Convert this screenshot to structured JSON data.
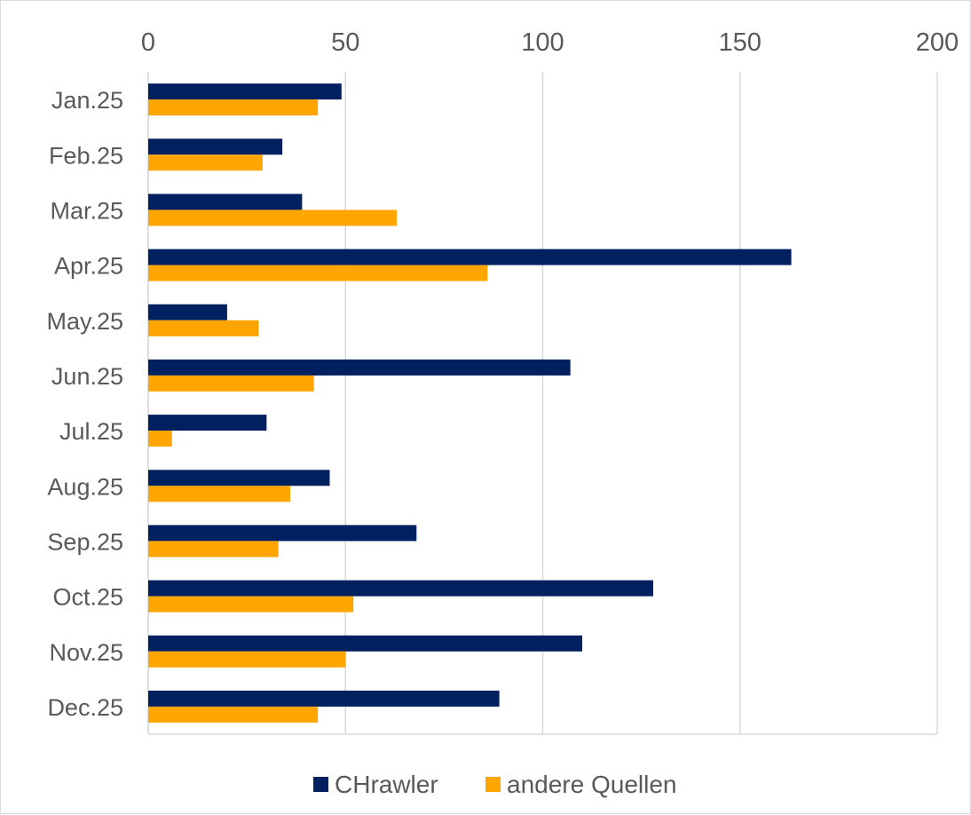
{
  "chart_data": {
    "type": "bar",
    "orientation": "horizontal",
    "categories": [
      "Jan.25",
      "Feb.25",
      "Mar.25",
      "Apr.25",
      "May.25",
      "Jun.25",
      "Jul.25",
      "Aug.25",
      "Sep.25",
      "Oct.25",
      "Nov.25",
      "Dec.25"
    ],
    "series": [
      {
        "name": "CHrawler",
        "color": "#002060",
        "values": [
          49,
          34,
          39,
          163,
          20,
          107,
          30,
          46,
          68,
          128,
          110,
          89
        ]
      },
      {
        "name": "andere Quellen",
        "color": "#FFA500",
        "values": [
          43,
          29,
          63,
          86,
          28,
          42,
          6,
          36,
          33,
          52,
          50,
          43
        ]
      }
    ],
    "title": "",
    "xlabel": "",
    "ylabel": "",
    "xlim": [
      0,
      200
    ],
    "x_ticks": [
      "0",
      "50",
      "100",
      "150",
      "200"
    ],
    "x_axis_position": "top",
    "grid": true,
    "legend_position": "bottom"
  }
}
